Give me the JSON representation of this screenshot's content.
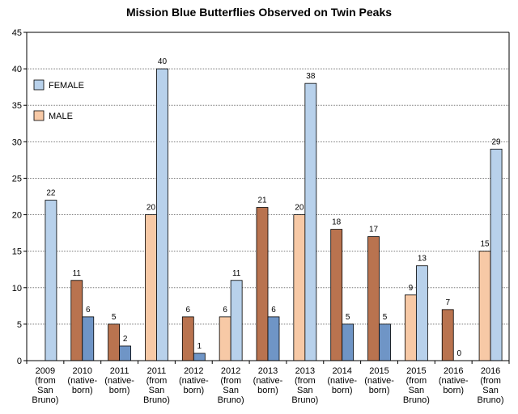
{
  "chart_data": {
    "type": "bar",
    "title": "Mission Blue Butterflies Observed on Twin Peaks",
    "ylim": [
      0,
      45
    ],
    "yticks": [
      0,
      5,
      10,
      15,
      20,
      25,
      30,
      35,
      40,
      45
    ],
    "grid": true,
    "legend": [
      {
        "name": "FEMALE",
        "color": "#b8d1eb"
      },
      {
        "name": "MALE",
        "color": "#f7c9a6"
      }
    ],
    "categories": [
      {
        "lines": [
          "2009",
          "(from",
          "San",
          "Bruno)"
        ]
      },
      {
        "lines": [
          "2010",
          "(native-",
          "born)"
        ]
      },
      {
        "lines": [
          "2011",
          "(native-",
          "born)"
        ]
      },
      {
        "lines": [
          "2011",
          "(from",
          "San",
          "Bruno)"
        ]
      },
      {
        "lines": [
          "2012",
          "(native-",
          "born)"
        ]
      },
      {
        "lines": [
          "2012",
          "(from",
          "San",
          "Bruno)"
        ]
      },
      {
        "lines": [
          "2013",
          "(native-",
          "born)"
        ]
      },
      {
        "lines": [
          "2013",
          "(from",
          "San",
          "Bruno)"
        ]
      },
      {
        "lines": [
          "2014",
          "(native-",
          "born)"
        ]
      },
      {
        "lines": [
          "2015",
          "(native-",
          "born)"
        ]
      },
      {
        "lines": [
          "2015",
          "(from",
          "San",
          "Bruno)"
        ]
      },
      {
        "lines": [
          "2016",
          "(native-",
          "born)"
        ]
      },
      {
        "lines": [
          "2016",
          "(from",
          "San",
          "Bruno)"
        ]
      }
    ],
    "bars": [
      {
        "male": null,
        "female": 22,
        "origin": "san-bruno"
      },
      {
        "male": 11,
        "female": 6,
        "origin": "native"
      },
      {
        "male": 5,
        "female": 2,
        "origin": "native"
      },
      {
        "male": 20,
        "female": 40,
        "origin": "san-bruno"
      },
      {
        "male": 6,
        "female": 1,
        "origin": "native"
      },
      {
        "male": 6,
        "female": 11,
        "origin": "san-bruno"
      },
      {
        "male": 21,
        "female": 6,
        "origin": "native"
      },
      {
        "male": 20,
        "female": 38,
        "origin": "san-bruno"
      },
      {
        "male": 18,
        "female": 5,
        "origin": "native"
      },
      {
        "male": 17,
        "female": 5,
        "origin": "native"
      },
      {
        "male": 9,
        "female": 13,
        "origin": "san-bruno"
      },
      {
        "male": 7,
        "female": 0,
        "origin": "native"
      },
      {
        "male": 15,
        "female": 29,
        "origin": "san-bruno"
      }
    ],
    "colors": {
      "female_san_bruno": "#b8d1eb",
      "female_native": "#6f95c6",
      "male_san_bruno": "#f7c9a6",
      "male_native": "#b9734f",
      "grid": "#7a7a7a",
      "axis": "#000000"
    }
  }
}
